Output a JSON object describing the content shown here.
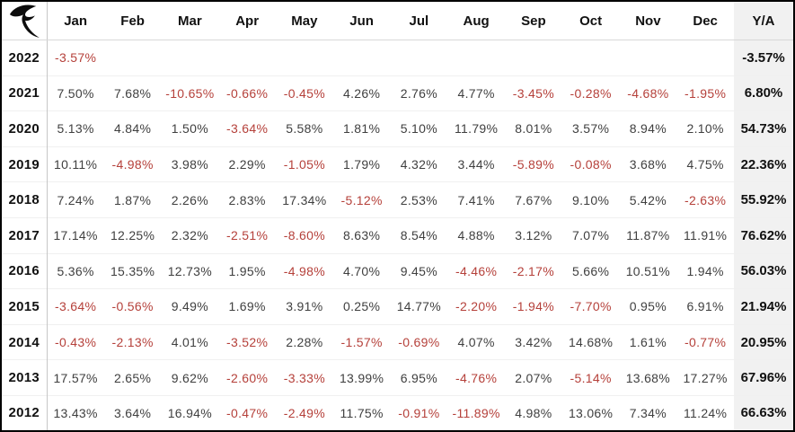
{
  "logo": {
    "icon": "r-swoosh-logo",
    "color": "#0d0d0d"
  },
  "colors": {
    "negative_value": "#b5403a",
    "positive_value": "#3f3f3f",
    "header_text": "#111111",
    "ya_column_background": "#f1f1f1",
    "frame_border": "#000000"
  },
  "chart_data": {
    "type": "table",
    "unit": "%",
    "columns": [
      "Jan",
      "Feb",
      "Mar",
      "Apr",
      "May",
      "Jun",
      "Jul",
      "Aug",
      "Sep",
      "Oct",
      "Nov",
      "Dec",
      "Y/A"
    ],
    "rows": [
      {
        "year": "2022",
        "monthly": [
          -3.57,
          null,
          null,
          null,
          null,
          null,
          null,
          null,
          null,
          null,
          null,
          null
        ],
        "ya": -3.57
      },
      {
        "year": "2021",
        "monthly": [
          7.5,
          7.68,
          -10.65,
          -0.66,
          -0.45,
          4.26,
          2.76,
          4.77,
          -3.45,
          -0.28,
          -4.68,
          -1.95
        ],
        "ya": 6.8
      },
      {
        "year": "2020",
        "monthly": [
          5.13,
          4.84,
          1.5,
          -3.64,
          5.58,
          1.81,
          5.1,
          11.79,
          8.01,
          3.57,
          8.94,
          2.1
        ],
        "ya": 54.73
      },
      {
        "year": "2019",
        "monthly": [
          10.11,
          -4.98,
          3.98,
          2.29,
          -1.05,
          1.79,
          4.32,
          3.44,
          -5.89,
          -0.08,
          3.68,
          4.75
        ],
        "ya": 22.36
      },
      {
        "year": "2018",
        "monthly": [
          7.24,
          1.87,
          2.26,
          2.83,
          17.34,
          -5.12,
          2.53,
          7.41,
          7.67,
          9.1,
          5.42,
          -2.63
        ],
        "ya": 55.92
      },
      {
        "year": "2017",
        "monthly": [
          17.14,
          12.25,
          2.32,
          -2.51,
          -8.6,
          8.63,
          8.54,
          4.88,
          3.12,
          7.07,
          11.87,
          11.91
        ],
        "ya": 76.62
      },
      {
        "year": "2016",
        "monthly": [
          5.36,
          15.35,
          12.73,
          1.95,
          -4.98,
          4.7,
          9.45,
          -4.46,
          -2.17,
          5.66,
          10.51,
          1.94
        ],
        "ya": 56.03
      },
      {
        "year": "2015",
        "monthly": [
          -3.64,
          -0.56,
          9.49,
          1.69,
          3.91,
          0.25,
          14.77,
          -2.2,
          -1.94,
          -7.7,
          0.95,
          6.91
        ],
        "ya": 21.94
      },
      {
        "year": "2014",
        "monthly": [
          -0.43,
          -2.13,
          4.01,
          -3.52,
          2.28,
          -1.57,
          -0.69,
          4.07,
          3.42,
          14.68,
          1.61,
          -0.77
        ],
        "ya": 20.95
      },
      {
        "year": "2013",
        "monthly": [
          17.57,
          2.65,
          9.62,
          -2.6,
          -3.33,
          13.99,
          6.95,
          -4.76,
          2.07,
          -5.14,
          13.68,
          17.27
        ],
        "ya": 67.96
      },
      {
        "year": "2012",
        "monthly": [
          13.43,
          3.64,
          16.94,
          -0.47,
          -2.49,
          11.75,
          -0.91,
          -11.89,
          4.98,
          13.06,
          7.34,
          11.24
        ],
        "ya": 66.63
      }
    ]
  }
}
